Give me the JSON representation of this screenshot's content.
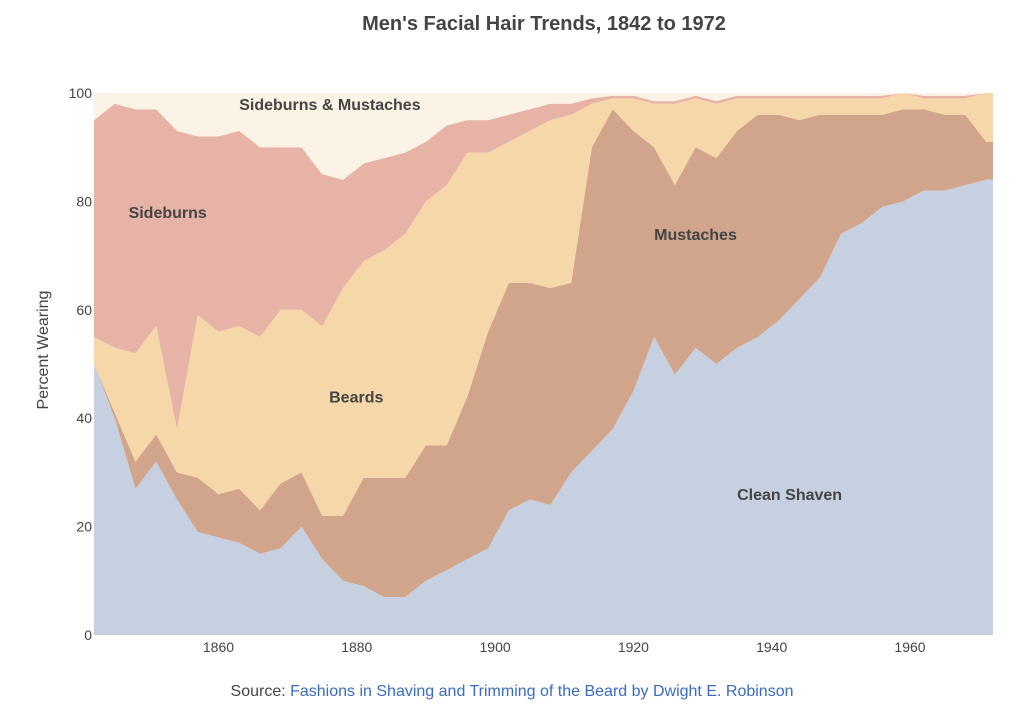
{
  "chart_data": {
    "type": "area",
    "stacked": true,
    "title": "Men's Facial Hair Trends, 1842 to 1972",
    "ylabel": "Percent Wearing",
    "xlabel": "",
    "xlim": [
      1842,
      1972
    ],
    "ylim": [
      0,
      100
    ],
    "xticks": [
      1860,
      1880,
      1900,
      1920,
      1940,
      1960
    ],
    "yticks": [
      0,
      20,
      40,
      60,
      80,
      100
    ],
    "grid": false,
    "legend": "none",
    "x": [
      1842,
      1845,
      1848,
      1851,
      1854,
      1857,
      1860,
      1863,
      1866,
      1869,
      1872,
      1875,
      1878,
      1881,
      1884,
      1887,
      1890,
      1893,
      1896,
      1899,
      1902,
      1905,
      1908,
      1911,
      1914,
      1917,
      1920,
      1923,
      1926,
      1929,
      1932,
      1935,
      1938,
      1941,
      1944,
      1947,
      1950,
      1953,
      1956,
      1959,
      1962,
      1965,
      1968,
      1971,
      1972
    ],
    "series": [
      {
        "name": "Clean Shaven",
        "color": "#c7d0e0",
        "values": [
          50,
          40,
          27,
          32,
          25,
          19,
          18,
          17,
          15,
          16,
          20,
          14,
          10,
          9,
          7,
          7,
          10,
          12,
          14,
          16,
          23,
          25,
          24,
          30,
          34,
          38,
          45,
          55,
          48,
          53,
          50,
          53,
          55,
          58,
          62,
          66,
          74,
          76,
          79,
          80,
          82,
          82,
          83,
          84,
          84
        ]
      },
      {
        "name": "Mustaches",
        "color": "#d1a58b",
        "values": [
          0,
          1,
          5,
          5,
          5,
          10,
          8,
          10,
          8,
          12,
          10,
          8,
          12,
          20,
          22,
          22,
          25,
          23,
          30,
          40,
          42,
          40,
          40,
          35,
          56,
          59,
          48,
          35,
          35,
          37,
          38,
          40,
          41,
          38,
          33,
          30,
          22,
          20,
          17,
          17,
          15,
          14,
          13,
          7,
          7
        ]
      },
      {
        "name": "Beards",
        "color": "#f6d7a9",
        "values": [
          5,
          12,
          20,
          20,
          8,
          30,
          30,
          30,
          32,
          32,
          30,
          35,
          42,
          40,
          42,
          45,
          45,
          48,
          45,
          33,
          26,
          28,
          31,
          31,
          8,
          2,
          6,
          8,
          15,
          9,
          10,
          6,
          3,
          3,
          4,
          3,
          3,
          3,
          3,
          3,
          2,
          3,
          3,
          9,
          9
        ]
      },
      {
        "name": "Sideburns",
        "color": "#e8b3a7",
        "values": [
          40,
          45,
          45,
          40,
          55,
          33,
          36,
          36,
          35,
          30,
          30,
          28,
          20,
          18,
          17,
          15,
          11,
          11,
          6,
          6,
          5,
          4,
          3,
          2,
          1,
          0.5,
          0.5,
          0.5,
          0.5,
          0.5,
          0.5,
          0.5,
          0.5,
          0.5,
          0.5,
          0.5,
          0.5,
          0.5,
          0.5,
          0.5,
          0.5,
          0.5,
          0.5,
          0,
          0
        ]
      },
      {
        "name": "Sideburns & Mustaches",
        "color": "#fbf3e5",
        "values": [
          5,
          2,
          3,
          3,
          7,
          8,
          8,
          7,
          10,
          10,
          10,
          15,
          16,
          13,
          12,
          11,
          9,
          6,
          5,
          5,
          4,
          3,
          2,
          2,
          1,
          0.5,
          0.5,
          1.5,
          1.5,
          0.5,
          1.5,
          0.5,
          0.5,
          0.5,
          0.5,
          0.5,
          0.5,
          0.5,
          0.5,
          0.5,
          0.5,
          0.5,
          0.5,
          0,
          0
        ]
      }
    ],
    "annotations": [
      {
        "text": "Sideburns & Mustaches",
        "x": 1863,
        "y": 98
      },
      {
        "text": "Sideburns",
        "x": 1847,
        "y": 78
      },
      {
        "text": "Mustaches",
        "x": 1923,
        "y": 74
      },
      {
        "text": "Beards",
        "x": 1876,
        "y": 44
      },
      {
        "text": "Clean Shaven",
        "x": 1935,
        "y": 26
      }
    ]
  },
  "source": {
    "prefix": "Source: ",
    "link_text": "Fashions in Shaving and Trimming of the Beard by Dwight E. Robinson"
  }
}
